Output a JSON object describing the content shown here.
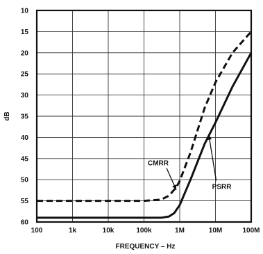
{
  "chart_data": {
    "type": "line",
    "title": "",
    "xlabel": "FREQUENCY – Hz",
    "ylabel": "dB",
    "x_scale": "log",
    "xlim": [
      100,
      100000000
    ],
    "ylim": [
      10,
      60
    ],
    "y_inverted": true,
    "grid": true,
    "x_ticks": [
      {
        "value": 100,
        "label": "100"
      },
      {
        "value": 1000,
        "label": "1k"
      },
      {
        "value": 10000,
        "label": "10k"
      },
      {
        "value": 100000,
        "label": "100k"
      },
      {
        "value": 1000000,
        "label": "1M"
      },
      {
        "value": 10000000,
        "label": "10M"
      },
      {
        "value": 100000000,
        "label": "100M"
      }
    ],
    "y_ticks": [
      10,
      15,
      20,
      25,
      30,
      35,
      40,
      45,
      50,
      55,
      60
    ],
    "series": [
      {
        "name": "CMRR",
        "style": "dashed",
        "color": "#111111",
        "points": [
          [
            100,
            55
          ],
          [
            100000,
            55
          ],
          [
            300000,
            54.7
          ],
          [
            500000,
            53.8
          ],
          [
            800000,
            51.8
          ],
          [
            1000000,
            50.3
          ],
          [
            2000000,
            43.6
          ],
          [
            5000000,
            33
          ],
          [
            10000000,
            27
          ],
          [
            30000000,
            20
          ],
          [
            100000000,
            15
          ]
        ]
      },
      {
        "name": "PSRR",
        "style": "solid",
        "color": "#111111",
        "points": [
          [
            100,
            59
          ],
          [
            300000,
            59
          ],
          [
            500000,
            58.7
          ],
          [
            700000,
            57.9
          ],
          [
            1000000,
            56
          ],
          [
            2000000,
            50
          ],
          [
            5000000,
            41.5
          ],
          [
            10000000,
            36.5
          ],
          [
            30000000,
            28
          ],
          [
            100000000,
            20
          ]
        ]
      }
    ],
    "annotations": [
      {
        "text": "CMRR",
        "series": "CMRR",
        "text_at": [
          250000,
          46.6
        ],
        "arrow_to": [
          800000,
          52.4
        ]
      },
      {
        "text": "PSRR",
        "series": "PSRR",
        "text_at": [
          15000000,
          52.2
        ],
        "arrow_to": [
          6500000,
          39.4
        ]
      }
    ]
  }
}
